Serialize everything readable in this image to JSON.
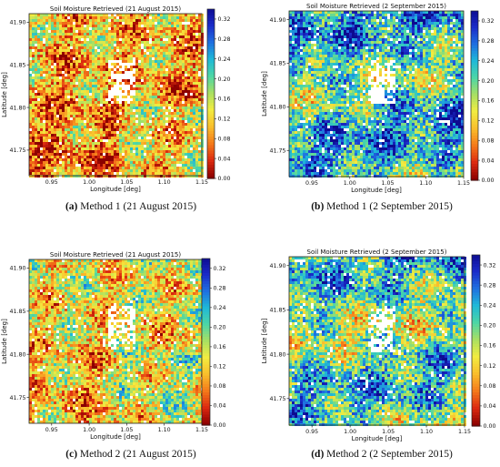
{
  "colorbar": {
    "colors": [
      "#8b0000",
      "#dc2a10",
      "#f47a1a",
      "#f9be2c",
      "#f2ec40",
      "#a8e063",
      "#4cd6a6",
      "#1fb8d8",
      "#1f6ee0",
      "#1a2bc8",
      "#0d0a8f"
    ],
    "ticks": [
      "0.00",
      "0.04",
      "0.08",
      "0.12",
      "0.16",
      "0.20",
      "0.24",
      "0.28",
      "0.32"
    ]
  },
  "captions": [
    {
      "letter": "(a)",
      "text": " Method 1 (21 August 2015)"
    },
    {
      "letter": "(b)",
      "text": " Method 1 (2 September 2015)"
    },
    {
      "letter": "(c)",
      "text": " Method 2 (21 August 2015)"
    },
    {
      "letter": "(d)",
      "text": " Method 2 (2 September 2015)"
    }
  ],
  "chart_data": [
    {
      "type": "heatmap",
      "title": "Soil Moisture Retrieved (21 August 2015)",
      "xlabel": "Longitude [deg]",
      "ylabel": "Latitude [deg]",
      "xticks": [
        "0.95",
        "1.00",
        "1.05",
        "1.10",
        "1.15"
      ],
      "yticks": [
        "41.90",
        "41.85",
        "41.80",
        "41.75"
      ],
      "xlim": [
        0.92,
        1.15
      ],
      "ylim": [
        41.72,
        41.91
      ],
      "colorbar_range": [
        0.0,
        0.34
      ],
      "typical_value": 0.09
    },
    {
      "type": "heatmap",
      "title": "Soil Moisture Retrieved (2 September 2015)",
      "xlabel": "Longitude [deg]",
      "ylabel": "Latitude [deg]",
      "xticks": [
        "0.95",
        "1.00",
        "1.05",
        "1.10",
        "1.15"
      ],
      "yticks": [
        "41.90",
        "41.85",
        "41.80",
        "41.75"
      ],
      "xlim": [
        0.92,
        1.15
      ],
      "ylim": [
        41.72,
        41.91
      ],
      "colorbar_range": [
        0.0,
        0.34
      ],
      "typical_value": 0.22
    },
    {
      "type": "heatmap",
      "title": "Soil Moisture Retrieved (21 August 2015)",
      "xlabel": "Longitude [deg]",
      "ylabel": "Latitude [deg]",
      "xticks": [
        "0.95",
        "1.00",
        "1.05",
        "1.10",
        "1.15"
      ],
      "yticks": [
        "41.90",
        "41.85",
        "41.80",
        "41.75"
      ],
      "xlim": [
        0.92,
        1.15
      ],
      "ylim": [
        41.72,
        41.91
      ],
      "colorbar_range": [
        0.0,
        0.34
      ],
      "typical_value": 0.12
    },
    {
      "type": "heatmap",
      "title": "Soil Moisture Retrieved (2 September 2015)",
      "xlabel": "Longitude [deg]",
      "ylabel": "Latitude [deg]",
      "xticks": [
        "0.95",
        "1.00",
        "1.05",
        "1.10",
        "1.15"
      ],
      "yticks": [
        "41.90",
        "41.85",
        "41.80",
        "41.75"
      ],
      "xlim": [
        0.92,
        1.15
      ],
      "ylim": [
        41.72,
        41.91
      ],
      "colorbar_range": [
        0.0,
        0.34
      ],
      "typical_value": 0.2
    }
  ]
}
